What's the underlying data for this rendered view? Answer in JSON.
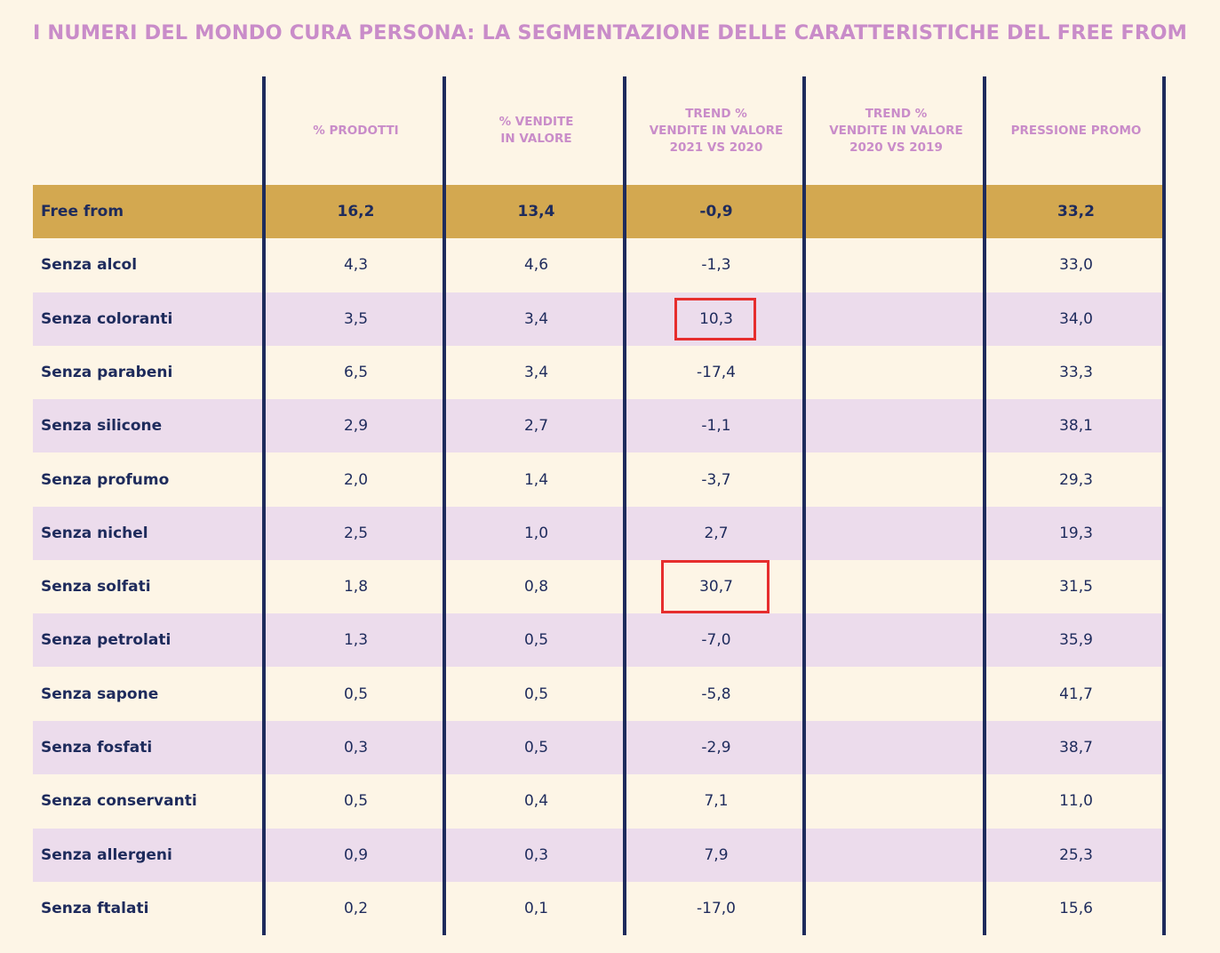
{
  "title": "I NUMERI DEL MONDO CURA PERSONA: LA SEGMENTAZIONE DELLE CARATTERISTICHE DEL FREE FROM",
  "colors": {
    "background": "#fdf5e6",
    "title": "#c98cc9",
    "header_text": "#c98cc9",
    "body_text": "#1e2b5c",
    "divider": "#1e2b5c",
    "total_row": "#d3a850",
    "alt_row": "#ecdcec",
    "highlight_box": "#e62e2e"
  },
  "columns": [
    "% PRODOTTI",
    "% VENDITE\nIN VALORE",
    "TREND %\nVENDITE IN VALORE\n2021 VS 2020",
    "TREND %\nVENDITE IN VALORE\n2020 VS 2019",
    "PRESSIONE PROMO"
  ],
  "rows": [
    {
      "label": "Free from",
      "values": [
        "16,2",
        "13,4",
        "-0,9",
        "",
        "33,2"
      ]
    },
    {
      "label": "Senza alcol",
      "values": [
        "4,3",
        "4,6",
        "-1,3",
        "",
        "33,0"
      ]
    },
    {
      "label": "Senza coloranti",
      "values": [
        "3,5",
        "3,4",
        "10,3",
        "",
        "34,0"
      ]
    },
    {
      "label": "Senza parabeni",
      "values": [
        "6,5",
        "3,4",
        "-17,4",
        "",
        "33,3"
      ]
    },
    {
      "label": "Senza silicone",
      "values": [
        "2,9",
        "2,7",
        "-1,1",
        "",
        "38,1"
      ]
    },
    {
      "label": "Senza profumo",
      "values": [
        "2,0",
        "1,4",
        "-3,7",
        "",
        "29,3"
      ]
    },
    {
      "label": "Senza nichel",
      "values": [
        "2,5",
        "1,0",
        "2,7",
        "",
        "19,3"
      ]
    },
    {
      "label": "Senza solfati",
      "values": [
        "1,8",
        "0,8",
        "30,7",
        "",
        "31,5"
      ]
    },
    {
      "label": "Senza petrolati",
      "values": [
        "1,3",
        "0,5",
        "-7,0",
        "",
        "35,9"
      ]
    },
    {
      "label": "Senza sapone",
      "values": [
        "0,5",
        "0,5",
        "-5,8",
        "",
        "41,7"
      ]
    },
    {
      "label": "Senza fosfati",
      "values": [
        "0,3",
        "0,5",
        "-2,9",
        "",
        "38,7"
      ]
    },
    {
      "label": "Senza conservanti",
      "values": [
        "0,5",
        "0,4",
        "7,1",
        "",
        "11,0"
      ]
    },
    {
      "label": "Senza allergeni",
      "values": [
        "0,9",
        "0,3",
        "7,9",
        "",
        "25,3"
      ]
    },
    {
      "label": "Senza ftalati",
      "values": [
        "0,2",
        "0,1",
        "-17,0",
        "",
        "15,6"
      ]
    }
  ],
  "highlighted_cells": [
    {
      "row": 2,
      "column": 2
    },
    {
      "row": 7,
      "column": 2
    }
  ]
}
